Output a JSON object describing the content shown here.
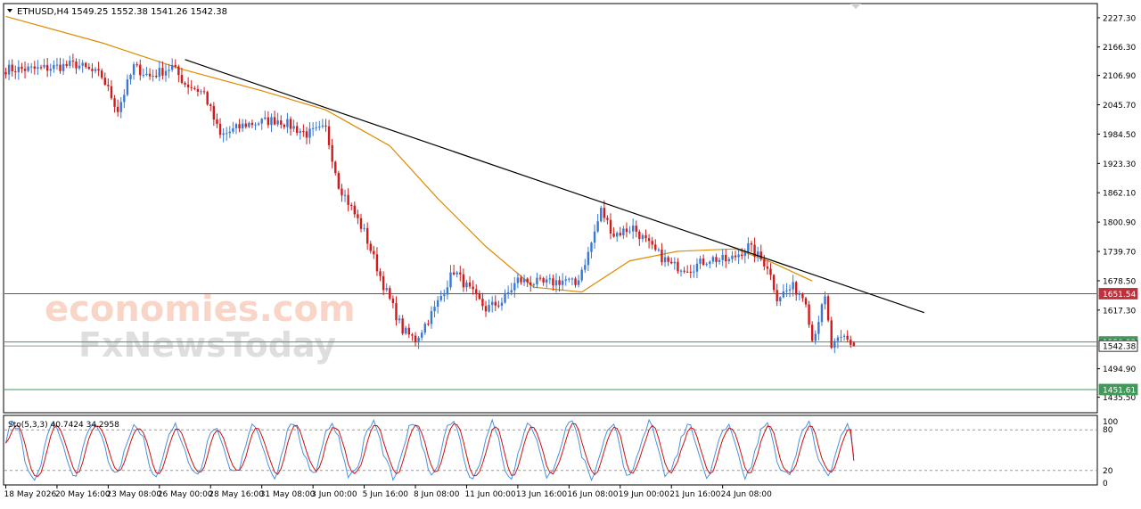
{
  "header": {
    "symbol": "ETHUSD,H4",
    "ohlc": "1549.25 1552.38 1541.26 1542.38"
  },
  "watermark": {
    "line1": "economies.com",
    "line2": "FxNewsToday"
  },
  "colors": {
    "bull": "#3a78d4",
    "bear": "#d21a1a",
    "ma": "#e08a00",
    "trendline": "#000000",
    "resistance": "#c0303a",
    "support": "#3f9a5a",
    "stoch_main": "#4a90e2",
    "stoch_signal": "#cc1111"
  },
  "chart_data": [
    {
      "type": "candlestick",
      "symbol": "ETHUSD",
      "timeframe": "H4",
      "ylim": [
        1405,
        2255
      ],
      "y_ticks": [
        "2227.30",
        "2166.30",
        "2106.90",
        "2045.70",
        "1984.50",
        "1923.30",
        "1862.10",
        "1800.90",
        "1739.70",
        "1678.50",
        "1617.30",
        "1494.90",
        "1435.50"
      ],
      "x_ticks": [
        "18 May 2026",
        "20 May 16:00",
        "23 May 08:00",
        "26 May 00:00",
        "28 May 16:00",
        "31 May 08:00",
        "3 Jun 00:00",
        "5 Jun 16:00",
        "8 Jun 08:00",
        "11 Jun 00:00",
        "13 Jun 16:00",
        "16 Jun 08:00",
        "19 Jun 00:00",
        "21 Jun 16:00",
        "24 Jun 08:00"
      ],
      "price_labels": [
        {
          "value": 1651.54,
          "label": "1651.54",
          "kind": "resistance"
        },
        {
          "value": 1550.82,
          "label": "1550.82",
          "kind": "support"
        },
        {
          "value": 1542.38,
          "label": "1542.38",
          "kind": "current"
        },
        {
          "value": 1451.61,
          "label": "1451.61",
          "kind": "support"
        }
      ],
      "trendline": {
        "start": {
          "bar": 56,
          "price": 2140
        },
        "end": {
          "bar": 287,
          "price": 1612
        }
      },
      "moving_average_path": [
        {
          "bar": 0,
          "price": 2230
        },
        {
          "bar": 30,
          "price": 2175
        },
        {
          "bar": 55,
          "price": 2120
        },
        {
          "bar": 80,
          "price": 2075
        },
        {
          "bar": 100,
          "price": 2035
        },
        {
          "bar": 120,
          "price": 1960
        },
        {
          "bar": 135,
          "price": 1850
        },
        {
          "bar": 150,
          "price": 1750
        },
        {
          "bar": 165,
          "price": 1665
        },
        {
          "bar": 180,
          "price": 1655
        },
        {
          "bar": 195,
          "price": 1720
        },
        {
          "bar": 210,
          "price": 1740
        },
        {
          "bar": 228,
          "price": 1745
        },
        {
          "bar": 240,
          "price": 1715
        },
        {
          "bar": 252,
          "price": 1678
        }
      ],
      "keypoints": [
        {
          "bar": 0,
          "price": 2120
        },
        {
          "bar": 10,
          "price": 2120
        },
        {
          "bar": 22,
          "price": 2130
        },
        {
          "bar": 30,
          "price": 2105
        },
        {
          "bar": 35,
          "price": 2035
        },
        {
          "bar": 40,
          "price": 2125
        },
        {
          "bar": 45,
          "price": 2105
        },
        {
          "bar": 52,
          "price": 2125
        },
        {
          "bar": 56,
          "price": 2090
        },
        {
          "bar": 62,
          "price": 2070
        },
        {
          "bar": 67,
          "price": 1980
        },
        {
          "bar": 75,
          "price": 2005
        },
        {
          "bar": 85,
          "price": 2015
        },
        {
          "bar": 94,
          "price": 1985
        },
        {
          "bar": 100,
          "price": 1995
        },
        {
          "bar": 104,
          "price": 1880
        },
        {
          "bar": 112,
          "price": 1780
        },
        {
          "bar": 118,
          "price": 1670
        },
        {
          "bar": 124,
          "price": 1575
        },
        {
          "bar": 128,
          "price": 1555
        },
        {
          "bar": 134,
          "price": 1620
        },
        {
          "bar": 140,
          "price": 1700
        },
        {
          "bar": 146,
          "price": 1650
        },
        {
          "bar": 150,
          "price": 1620
        },
        {
          "bar": 155,
          "price": 1635
        },
        {
          "bar": 160,
          "price": 1680
        },
        {
          "bar": 168,
          "price": 1672
        },
        {
          "bar": 175,
          "price": 1680
        },
        {
          "bar": 178,
          "price": 1670
        },
        {
          "bar": 182,
          "price": 1735
        },
        {
          "bar": 186,
          "price": 1825
        },
        {
          "bar": 190,
          "price": 1775
        },
        {
          "bar": 196,
          "price": 1790
        },
        {
          "bar": 202,
          "price": 1745
        },
        {
          "bar": 208,
          "price": 1710
        },
        {
          "bar": 214,
          "price": 1705
        },
        {
          "bar": 220,
          "price": 1725
        },
        {
          "bar": 226,
          "price": 1720
        },
        {
          "bar": 232,
          "price": 1750
        },
        {
          "bar": 238,
          "price": 1710
        },
        {
          "bar": 241,
          "price": 1645
        },
        {
          "bar": 246,
          "price": 1665
        },
        {
          "bar": 250,
          "price": 1640
        },
        {
          "bar": 252,
          "price": 1555
        },
        {
          "bar": 255,
          "price": 1620
        },
        {
          "bar": 256,
          "price": 1640
        },
        {
          "bar": 258,
          "price": 1540
        },
        {
          "bar": 262,
          "price": 1560
        },
        {
          "bar": 265,
          "price": 1542.38
        }
      ],
      "bar_count": 266,
      "bar_ticks_at": [
        0,
        16,
        32,
        48,
        64,
        80,
        96,
        112,
        128,
        144,
        160,
        176,
        192,
        208,
        224
      ]
    },
    {
      "type": "line",
      "title": "Sto(5,3,3) 40.7424 34.2958",
      "ylim": [
        0,
        100
      ],
      "y_ticks": [
        "100",
        "80",
        "20",
        "0"
      ],
      "levels": [
        80,
        20
      ],
      "main": 40.7424,
      "signal": 34.2958
    }
  ]
}
